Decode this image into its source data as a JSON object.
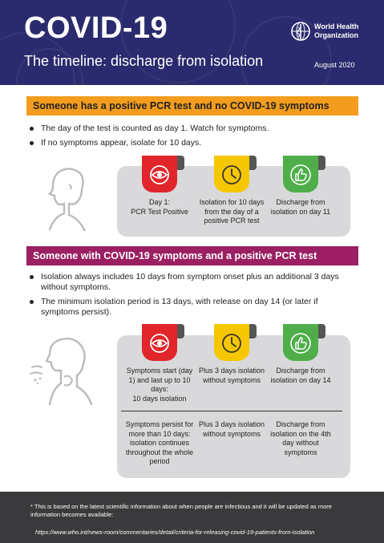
{
  "header": {
    "title": "COVID-19",
    "subtitle": "The timeline: discharge from isolation",
    "logo_text": "World Health Organization",
    "date": "August 2020"
  },
  "section1": {
    "banner": "Someone has a positive PCR test and no COVID-19 symptoms",
    "bullets": [
      "The day of the test is counted as day 1. Watch for symptoms.",
      "If no symptoms appear, isolate for 10 days."
    ],
    "cells": [
      "Day 1:\nPCR Test Positive",
      "Isolation for 10 days from the day of a positive PCR test",
      "Discharge from isolation on day 11"
    ]
  },
  "section2": {
    "banner": "Someone with COVID-19 symptoms and a positive PCR test",
    "bullets": [
      "Isolation always includes 10 days from symptom onset plus an additional 3 days without symptoms.",
      "The minimum isolation period is 13 days, with release on day 14 (or later if symptoms persist)."
    ],
    "row1": [
      "Symptoms start (day 1) and last up to 10 days:\n10 days isolation",
      "Plus 3 days isolation without symptoms",
      "Discharge from isolation on day 14"
    ],
    "row2": [
      "Symptoms persist for more than 10 days: isolation continues throughout the whole period",
      "Plus 3 days isolation without symptoms",
      "Discharge from isolation on the 4th day without symptoms"
    ]
  },
  "footer": {
    "note": "* This is based on the latest scientific information about when people are infectious and it will be updated as more information becomes available:",
    "url": "https://www.who.int/news-room/commentaries/detail/criteria-for-releasing-covid-19-patients-from-isolation"
  },
  "colors": {
    "header": "#2a2a6e",
    "orange_banner": "#f39c1e",
    "purple_banner": "#9b1f62",
    "badge_red": "#e0262b",
    "badge_yellow": "#f6c700",
    "badge_green": "#4fae4a"
  },
  "icons": [
    "virus-eye-icon",
    "clock-icon",
    "thumbs-up-icon",
    "person-icon",
    "coughing-person-icon",
    "who-emblem-icon"
  ]
}
